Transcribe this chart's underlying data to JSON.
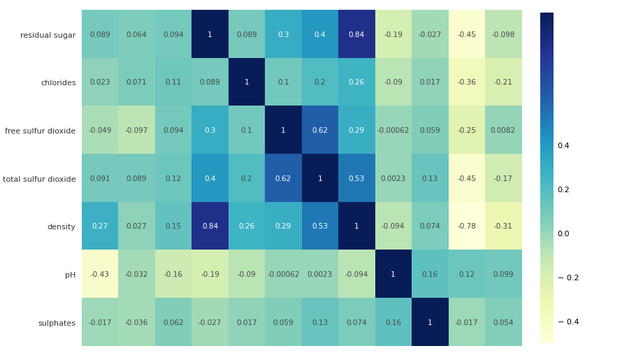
{
  "row_labels": [
    "residual sugar",
    "chlorides",
    "free sulfur dioxide",
    "total sulfur dioxide",
    "density",
    "pH",
    "sulphates"
  ],
  "matrix": [
    [
      0.089,
      0.064,
      0.094,
      1.0,
      0.089,
      0.3,
      0.4,
      0.84,
      -0.19,
      -0.027,
      -0.45,
      -0.098
    ],
    [
      0.023,
      0.071,
      0.11,
      0.089,
      1.0,
      0.1,
      0.2,
      0.26,
      -0.09,
      0.017,
      -0.36,
      -0.21
    ],
    [
      -0.049,
      -0.097,
      0.094,
      0.3,
      0.1,
      1.0,
      0.62,
      0.29,
      -0.00062,
      0.059,
      -0.25,
      0.0082
    ],
    [
      0.091,
      0.089,
      0.12,
      0.4,
      0.2,
      0.62,
      1.0,
      0.53,
      0.0023,
      0.13,
      -0.45,
      -0.17
    ],
    [
      0.27,
      0.027,
      0.15,
      0.84,
      0.26,
      0.29,
      0.53,
      1.0,
      -0.094,
      0.074,
      -0.78,
      -0.31
    ],
    [
      -0.43,
      -0.032,
      -0.16,
      -0.19,
      -0.09,
      -0.00062,
      0.0023,
      -0.094,
      1.0,
      0.16,
      0.12,
      0.099
    ],
    [
      -0.017,
      -0.036,
      0.062,
      -0.027,
      0.017,
      0.059,
      0.13,
      0.074,
      0.16,
      1.0,
      -0.017,
      0.054
    ]
  ],
  "annotations": [
    [
      "0.089",
      "0.064",
      "0.094",
      "1",
      "0.089",
      "0.3",
      "0.4",
      "0.84",
      "-0.19",
      "-0.027",
      "-0.45",
      "-0.098"
    ],
    [
      "0.023",
      "0.071",
      "0.11",
      "0.089",
      "1",
      "0.1",
      "0.2",
      "0.26",
      "-0.09",
      "0.017",
      "-0.36",
      "-0.21"
    ],
    [
      "-0.049",
      "-0.097",
      "0.094",
      "0.3",
      "0.1",
      "1",
      "0.62",
      "0.29",
      "-0.00062",
      "0.059",
      "-0.25",
      "0.0082"
    ],
    [
      "0.091",
      "0.089",
      "0.12",
      "0.4",
      "0.2",
      "0.62",
      "1",
      "0.53",
      "0.0023",
      "0.13",
      "-0.45",
      "-0.17"
    ],
    [
      "0.27",
      "0.027",
      "0.15",
      "0.84",
      "0.26",
      "0.29",
      "0.53",
      "1",
      "-0.094",
      "0.074",
      "-0.78",
      "-0.31"
    ],
    [
      "-0.43",
      "-0.032",
      "-0.16",
      "-0.19",
      "-0.09",
      "-0.00062",
      "0.0023",
      "-0.094",
      "1",
      "0.16",
      "0.12",
      "0.099"
    ],
    [
      "-0.017",
      "-0.036",
      "0.062",
      "-0.027",
      "0.017",
      "0.059",
      "0.13",
      "0.074",
      "0.16",
      "1",
      "-0.017",
      "0.054"
    ]
  ],
  "vmin": -0.5,
  "vmax": 1.0,
  "cmap": "YlGnBu",
  "colorbar_ticks": [
    0.4,
    0.2,
    0.0,
    -0.2,
    -0.4
  ],
  "figsize": [
    9.0,
    5.06
  ],
  "dpi": 100,
  "background_color": "white",
  "text_color_light": "white",
  "text_color_dark": "#444444",
  "font_size_annot": 7.5,
  "font_size_tick": 8.0,
  "font_size_cbar": 8.0
}
